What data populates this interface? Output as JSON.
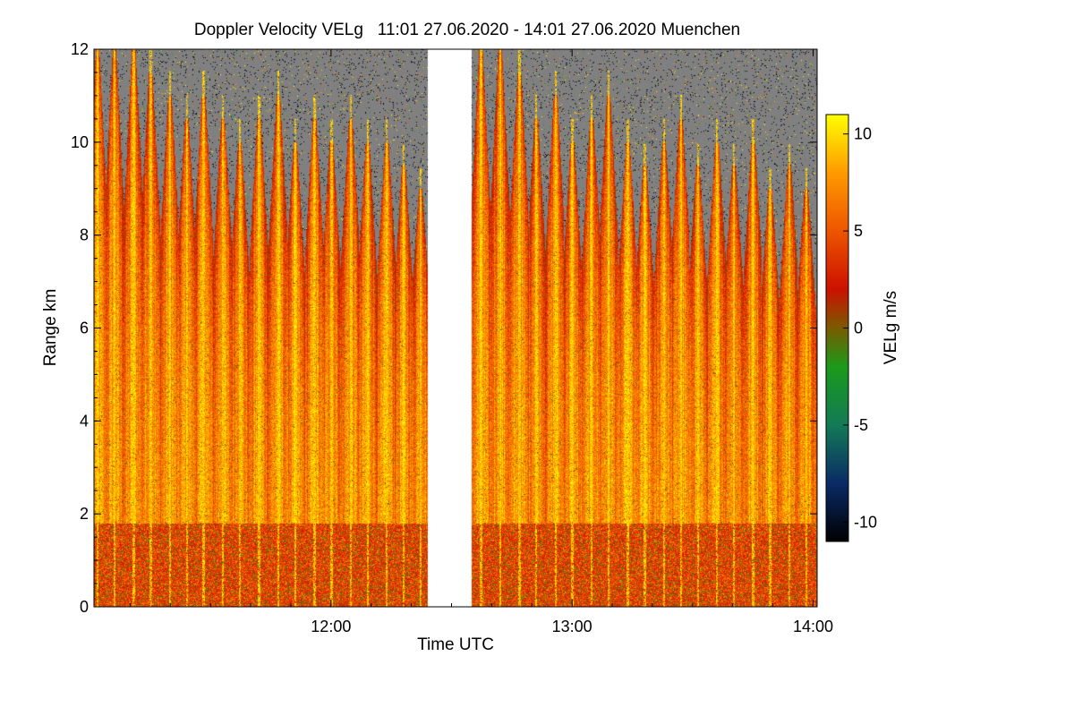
{
  "chart_data": {
    "type": "heatmap",
    "title": "Doppler Velocity VELg   11:01 27.06.2020 - 14:01 27.06.2020 Muenchen",
    "xlabel": "Time UTC",
    "ylabel": "Range km",
    "x_range_hours": [
      11.0167,
      14.0167
    ],
    "ylim": [
      0,
      12
    ],
    "x_ticks": [
      {
        "value": 12.0,
        "label": "12:00"
      },
      {
        "value": 13.0,
        "label": "13:00"
      },
      {
        "value": 14.0,
        "label": "14:00"
      }
    ],
    "y_ticks": [
      {
        "value": 0,
        "label": "0"
      },
      {
        "value": 2,
        "label": "2"
      },
      {
        "value": 4,
        "label": "4"
      },
      {
        "value": 6,
        "label": "6"
      },
      {
        "value": 8,
        "label": "8"
      },
      {
        "value": 10,
        "label": "10"
      },
      {
        "value": 12,
        "label": "12"
      }
    ],
    "data_gap_hours": [
      12.4,
      12.583
    ],
    "background_color": "#808080",
    "colorbar": {
      "label": "VELg m/s",
      "range": [
        -11,
        11
      ],
      "ticks": [
        {
          "value": 10,
          "label": "10"
        },
        {
          "value": 5,
          "label": "5"
        },
        {
          "value": 0,
          "label": "0"
        },
        {
          "value": -5,
          "label": "-5"
        },
        {
          "value": -10,
          "label": "-10"
        }
      ],
      "stops": [
        {
          "value": -11,
          "color": "#000000"
        },
        {
          "value": -8,
          "color": "#0a2a66"
        },
        {
          "value": -5,
          "color": "#137a55"
        },
        {
          "value": -2,
          "color": "#1a9a1a"
        },
        {
          "value": 0,
          "color": "#7a5a00"
        },
        {
          "value": 2,
          "color": "#cc1100"
        },
        {
          "value": 5,
          "color": "#ee5500"
        },
        {
          "value": 8,
          "color": "#ff9a00"
        },
        {
          "value": 11,
          "color": "#ffff00"
        }
      ]
    },
    "plume_times_hours": [
      11.03,
      11.1,
      11.18,
      11.25,
      11.33,
      11.4,
      11.47,
      11.55,
      11.62,
      11.7,
      11.78,
      11.85,
      11.93,
      12.0,
      12.08,
      12.15,
      12.23,
      12.3,
      12.37,
      12.62,
      12.7,
      12.78,
      12.85,
      12.93,
      13.0,
      13.08,
      13.15,
      13.23,
      13.3,
      13.38,
      13.45,
      13.52,
      13.6,
      13.67,
      13.75,
      13.82,
      13.9,
      13.97
    ],
    "plume_tops_km": [
      12,
      12,
      12,
      11.5,
      11,
      10.5,
      11,
      10.5,
      10,
      10.5,
      11,
      10,
      10.5,
      10,
      10.5,
      10,
      10,
      9.5,
      9,
      12,
      12,
      11.5,
      10.5,
      11,
      10,
      10.5,
      11,
      10,
      9.5,
      10,
      10.5,
      9.5,
      10,
      9.5,
      10,
      9,
      9.5,
      9
    ]
  }
}
